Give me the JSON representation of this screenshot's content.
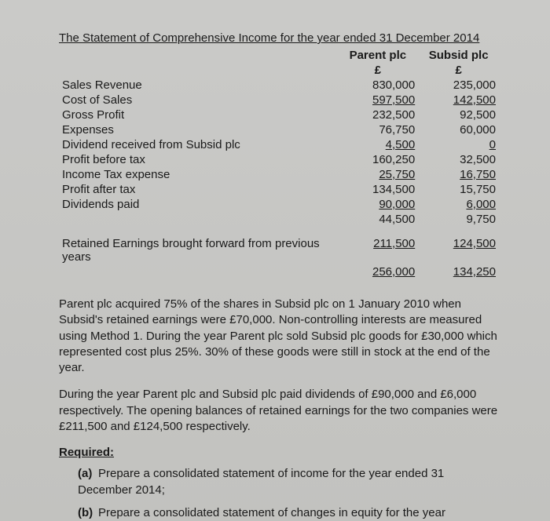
{
  "title": "The Statement of Comprehensive Income for the year ended 31 December 2014",
  "columns": {
    "parent_name": "Parent plc",
    "subsid_name": "Subsid plc",
    "currency": "£"
  },
  "rows": [
    {
      "label": "Sales Revenue",
      "parent": "830,000",
      "subsid": "235,000",
      "ul": false
    },
    {
      "label": "Cost of Sales",
      "parent": "597,500",
      "subsid": "142,500",
      "ul": true
    },
    {
      "label": "Gross Profit",
      "parent": "232,500",
      "subsid": "92,500",
      "ul": false
    },
    {
      "label": "Expenses",
      "parent": "76,750",
      "subsid": "60,000",
      "ul": false
    },
    {
      "label": "Dividend received from Subsid plc",
      "parent": "4,500",
      "subsid": "0",
      "ul": true
    },
    {
      "label": "Profit before tax",
      "parent": "160,250",
      "subsid": "32,500",
      "ul": false
    },
    {
      "label": "Income Tax expense",
      "parent": "25,750",
      "subsid": "16,750",
      "ul": true
    },
    {
      "label": "Profit after tax",
      "parent": "134,500",
      "subsid": "15,750",
      "ul": false
    },
    {
      "label": "Dividends paid",
      "parent": "90,000",
      "subsid": "6,000",
      "ul": true
    },
    {
      "label": "",
      "parent": "44,500",
      "subsid": "9,750",
      "ul": false
    }
  ],
  "retained_label": "Retained Earnings brought forward from previous years",
  "retained": {
    "parent": "211,500",
    "subsid": "124,500"
  },
  "final": {
    "parent": "256,000",
    "subsid": "134,250"
  },
  "paras": [
    "Parent plc acquired 75% of the shares in Subsid plc on 1 January 2010 when Subsid's retained earnings were £70,000. Non-controlling interests are measured using Method 1. During the year Parent plc sold Subsid plc goods for £30,000 which represented cost plus 25%. 30% of these goods were still in stock at the end of the year.",
    "During the year Parent plc and Subsid plc paid dividends of £90,000 and £6,000 respectively. The opening balances of retained earnings for the two companies were £211,500 and £124,500 respectively."
  ],
  "required_heading": "Required:",
  "required": [
    {
      "marker": "(a)",
      "text": "Prepare a consolidated statement of income for the year ended 31 December 2014;"
    },
    {
      "marker": "(b)",
      "text": "Prepare a consolidated statement of changes in equity for the year"
    }
  ]
}
